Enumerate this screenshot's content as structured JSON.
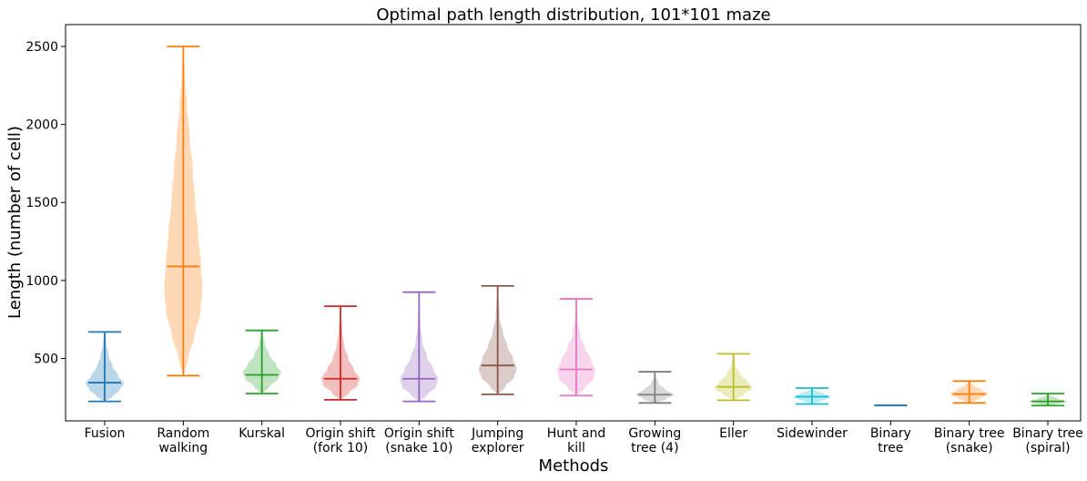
{
  "chart_data": {
    "type": "violin",
    "title": "Optimal path length distribution, 101*101 maze",
    "xlabel": "Methods",
    "ylabel": "Length (number of cell)",
    "ylim": [
      100,
      2640
    ],
    "yticks": [
      500,
      1000,
      1500,
      2000,
      2500
    ],
    "grid": false,
    "show_means": true,
    "series": [
      {
        "label_lines": [
          "Fusion"
        ],
        "color": "#1f77b4",
        "min": 225,
        "max": 670,
        "mean": 345,
        "profile": [
          [
            225,
            0.05
          ],
          [
            260,
            0.45
          ],
          [
            300,
            0.8
          ],
          [
            340,
            1.0
          ],
          [
            390,
            0.7
          ],
          [
            450,
            0.4
          ],
          [
            520,
            0.2
          ],
          [
            600,
            0.08
          ],
          [
            670,
            0.02
          ]
        ]
      },
      {
        "label_lines": [
          "Random",
          "walking"
        ],
        "color": "#ff7f0e",
        "min": 390,
        "max": 2500,
        "mean": 1090,
        "profile": [
          [
            390,
            0.02
          ],
          [
            500,
            0.25
          ],
          [
            650,
            0.6
          ],
          [
            800,
            0.9
          ],
          [
            950,
            1.0
          ],
          [
            1100,
            0.92
          ],
          [
            1300,
            0.78
          ],
          [
            1500,
            0.62
          ],
          [
            1700,
            0.5
          ],
          [
            1900,
            0.35
          ],
          [
            2100,
            0.2
          ],
          [
            2300,
            0.08
          ],
          [
            2500,
            0.01
          ]
        ]
      },
      {
        "label_lines": [
          "Kurskal"
        ],
        "color": "#2ca02c",
        "min": 275,
        "max": 680,
        "mean": 395,
        "profile": [
          [
            275,
            0.05
          ],
          [
            320,
            0.4
          ],
          [
            370,
            0.85
          ],
          [
            410,
            1.0
          ],
          [
            460,
            0.75
          ],
          [
            520,
            0.4
          ],
          [
            590,
            0.15
          ],
          [
            680,
            0.02
          ]
        ]
      },
      {
        "label_lines": [
          "Origin shift",
          "(fork 10)"
        ],
        "color": "#d62728",
        "min": 235,
        "max": 835,
        "mean": 370,
        "profile": [
          [
            235,
            0.05
          ],
          [
            280,
            0.45
          ],
          [
            330,
            0.9
          ],
          [
            370,
            1.0
          ],
          [
            430,
            0.7
          ],
          [
            500,
            0.4
          ],
          [
            580,
            0.2
          ],
          [
            680,
            0.08
          ],
          [
            835,
            0.01
          ]
        ]
      },
      {
        "label_lines": [
          "Origin shift",
          "(snake 10)"
        ],
        "color": "#9467bd",
        "min": 225,
        "max": 925,
        "mean": 370,
        "profile": [
          [
            225,
            0.05
          ],
          [
            270,
            0.45
          ],
          [
            320,
            0.9
          ],
          [
            370,
            1.0
          ],
          [
            430,
            0.75
          ],
          [
            510,
            0.42
          ],
          [
            600,
            0.18
          ],
          [
            720,
            0.06
          ],
          [
            925,
            0.01
          ]
        ]
      },
      {
        "label_lines": [
          "Jumping",
          "explorer"
        ],
        "color": "#8c564b",
        "min": 270,
        "max": 965,
        "mean": 455,
        "profile": [
          [
            270,
            0.05
          ],
          [
            320,
            0.4
          ],
          [
            380,
            0.85
          ],
          [
            430,
            1.0
          ],
          [
            500,
            0.8
          ],
          [
            580,
            0.5
          ],
          [
            660,
            0.28
          ],
          [
            760,
            0.1
          ],
          [
            965,
            0.01
          ]
        ]
      },
      {
        "label_lines": [
          "Hunt and",
          "kill"
        ],
        "color": "#e377c2",
        "min": 262,
        "max": 882,
        "mean": 430,
        "profile": [
          [
            262,
            0.05
          ],
          [
            310,
            0.45
          ],
          [
            370,
            0.9
          ],
          [
            420,
            1.0
          ],
          [
            490,
            0.78
          ],
          [
            570,
            0.45
          ],
          [
            650,
            0.2
          ],
          [
            760,
            0.06
          ],
          [
            882,
            0.01
          ]
        ]
      },
      {
        "label_lines": [
          "Growing",
          "tree (4)"
        ],
        "color": "#7f7f7f",
        "min": 215,
        "max": 415,
        "mean": 268,
        "profile": [
          [
            215,
            0.05
          ],
          [
            240,
            0.6
          ],
          [
            268,
            1.0
          ],
          [
            300,
            0.55
          ],
          [
            340,
            0.2
          ],
          [
            380,
            0.06
          ],
          [
            415,
            0.01
          ]
        ]
      },
      {
        "label_lines": [
          "Eller"
        ],
        "color": "#bcbd22",
        "min": 232,
        "max": 530,
        "mean": 318,
        "profile": [
          [
            232,
            0.05
          ],
          [
            270,
            0.55
          ],
          [
            310,
            1.0
          ],
          [
            350,
            0.75
          ],
          [
            400,
            0.35
          ],
          [
            460,
            0.1
          ],
          [
            530,
            0.01
          ]
        ]
      },
      {
        "label_lines": [
          "Sidewinder"
        ],
        "color": "#17becf",
        "min": 208,
        "max": 310,
        "mean": 255,
        "profile": [
          [
            208,
            0.05
          ],
          [
            230,
            0.55
          ],
          [
            255,
            1.0
          ],
          [
            275,
            0.6
          ],
          [
            295,
            0.15
          ],
          [
            310,
            0.02
          ]
        ]
      },
      {
        "label_lines": [
          "Binary",
          "tree"
        ],
        "color": "#1f77b4",
        "min": 200,
        "max": 200,
        "mean": 200,
        "profile": []
      },
      {
        "label_lines": [
          "Binary tree",
          "(snake)"
        ],
        "color": "#ff7f0e",
        "min": 215,
        "max": 355,
        "mean": 272,
        "profile": [
          [
            215,
            0.05
          ],
          [
            245,
            0.6
          ],
          [
            272,
            1.0
          ],
          [
            300,
            0.65
          ],
          [
            330,
            0.2
          ],
          [
            355,
            0.02
          ]
        ]
      },
      {
        "label_lines": [
          "Binary tree",
          "(spiral)"
        ],
        "color": "#2ca02c",
        "min": 198,
        "max": 275,
        "mean": 225,
        "profile": [
          [
            198,
            0.05
          ],
          [
            212,
            0.65
          ],
          [
            225,
            1.0
          ],
          [
            242,
            0.55
          ],
          [
            260,
            0.15
          ],
          [
            275,
            0.02
          ]
        ]
      }
    ]
  }
}
